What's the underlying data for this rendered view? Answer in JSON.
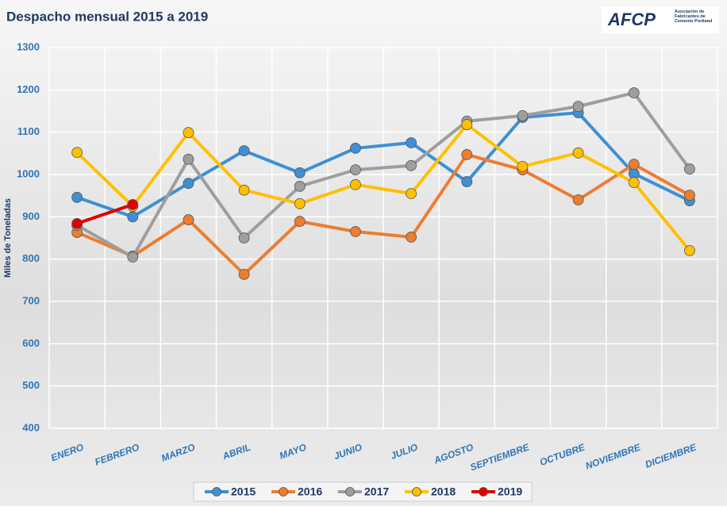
{
  "logo": {
    "name": "AFCP",
    "subtitle": "Asociación de Fabricantes de Cemento Portland"
  },
  "chart_data": {
    "type": "line",
    "title": "Despacho mensual 2015 a 2019",
    "y_label": "Miles de Toneladas",
    "categories": [
      "ENERO",
      "FEBRERO",
      "MARZO",
      "ABRIL",
      "MAYO",
      "JUNIO",
      "JULIO",
      "AGOSTO",
      "SEPTIEMBRE",
      "OCTUBRE",
      "NOVIEMBRE",
      "DICIEMBRE"
    ],
    "series": [
      {
        "name": "2015",
        "color": "#3f8fd2",
        "values": [
          946,
          900,
          979,
          1056,
          1004,
          1062,
          1075,
          983,
          1135,
          1146,
          1002,
          938
        ]
      },
      {
        "name": "2016",
        "color": "#ed7d31",
        "values": [
          863,
          807,
          893,
          764,
          889,
          865,
          852,
          1047,
          1011,
          940,
          1024,
          951
        ]
      },
      {
        "name": "2017",
        "color": "#9e9e9e",
        "values": [
          880,
          805,
          1036,
          850,
          972,
          1011,
          1021,
          1126,
          1139,
          1161,
          1193,
          1013
        ]
      },
      {
        "name": "2018",
        "color": "#ffc000",
        "values": [
          1052,
          925,
          1099,
          963,
          931,
          976,
          955,
          1118,
          1019,
          1051,
          981,
          820
        ]
      },
      {
        "name": "2019",
        "color": "#e00000",
        "values": [
          884,
          929,
          null,
          null,
          null,
          null,
          null,
          null,
          null,
          null,
          null,
          null
        ]
      }
    ],
    "ylim": [
      400,
      1300
    ],
    "yticks": [
      400,
      500,
      600,
      700,
      800,
      900,
      1000,
      1100,
      1200,
      1300
    ],
    "grid": true,
    "legend": "bottom"
  }
}
